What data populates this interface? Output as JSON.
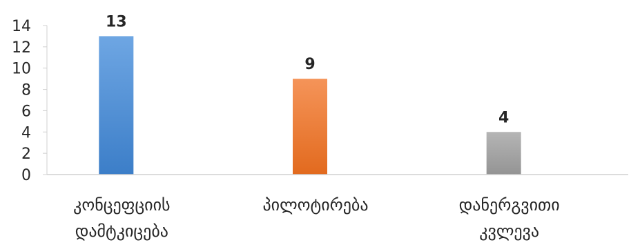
{
  "chart_data": {
    "type": "bar",
    "categories": [
      [
        "კონცეფციის",
        "დამტკიცება"
      ],
      [
        "პილოტირება"
      ],
      [
        "დანერგვითი",
        "კვლევა"
      ]
    ],
    "values": [
      13,
      9,
      4
    ],
    "data_labels": [
      "13",
      "9",
      "4"
    ],
    "bar_colors": [
      "#4F8FD6",
      "#ED7D31",
      "#A5A5A5"
    ],
    "ylim": [
      0,
      14
    ],
    "yticks": [
      0,
      2,
      4,
      6,
      8,
      10,
      12,
      14
    ],
    "grid": false,
    "legend": "none"
  }
}
